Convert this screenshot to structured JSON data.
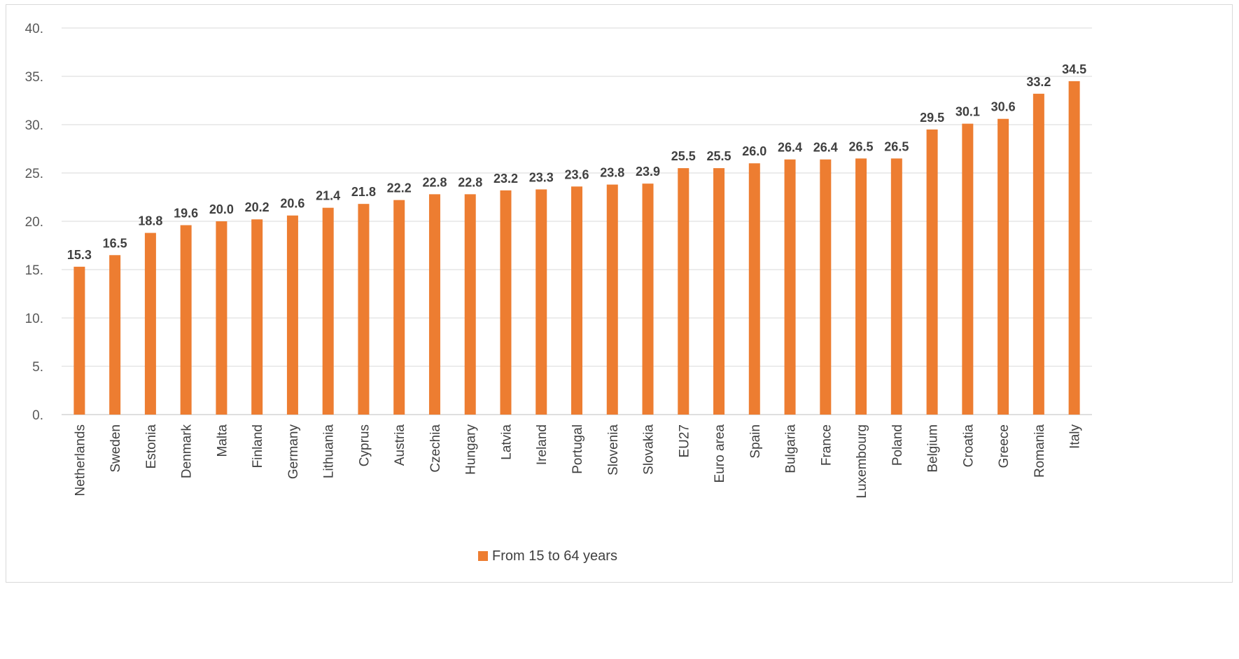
{
  "chart_data": {
    "type": "bar",
    "title": "",
    "xlabel": "",
    "ylabel": "",
    "ylim": [
      0,
      40
    ],
    "y_ticks": [
      "0.",
      "5.",
      "10.",
      "15.",
      "20.",
      "25.",
      "30.",
      "35.",
      "40."
    ],
    "grid": true,
    "legend_position": "bottom",
    "bar_color": "#ED7D31",
    "categories": [
      "Netherlands",
      "Sweden",
      "Estonia",
      "Denmark",
      "Malta",
      "Finland",
      "Germany",
      "Lithuania",
      "Cyprus",
      "Austria",
      "Czechia",
      "Hungary",
      "Latvia",
      "Ireland",
      "Portugal",
      "Slovenia",
      "Slovakia",
      "EU27",
      "Euro area",
      "Spain",
      "Bulgaria",
      "France",
      "Luxembourg",
      "Poland",
      "Belgium",
      "Croatia",
      "Greece",
      "Romania",
      "Italy"
    ],
    "series": [
      {
        "name": "From 15 to 64 years",
        "values": [
          15.3,
          16.5,
          18.8,
          19.6,
          20.0,
          20.2,
          20.6,
          21.4,
          21.8,
          22.2,
          22.8,
          22.8,
          23.2,
          23.3,
          23.6,
          23.8,
          23.9,
          25.5,
          25.5,
          26.0,
          26.4,
          26.4,
          26.5,
          26.5,
          29.5,
          30.1,
          30.6,
          33.2,
          34.5
        ],
        "labels": [
          "15.3",
          "16.5",
          "18.8",
          "19.6",
          "20.0",
          "20.2",
          "20.6",
          "21.4",
          "21.8",
          "22.2",
          "22.8",
          "22.8",
          "23.2",
          "23.3",
          "23.6",
          "23.8",
          "23.9",
          "25.5",
          "25.5",
          "26.0",
          "26.4",
          "26.4",
          "26.5",
          "26.5",
          "29.5",
          "30.1",
          "30.6",
          "33.2",
          "34.5"
        ]
      }
    ]
  }
}
